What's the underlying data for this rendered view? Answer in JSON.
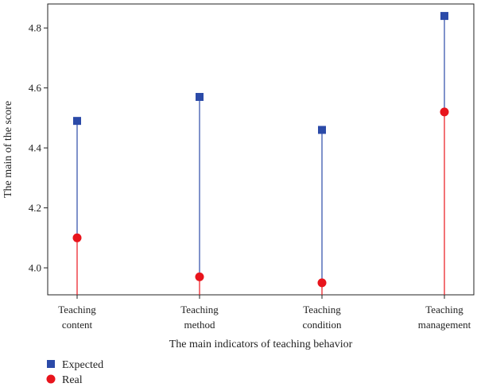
{
  "chart_data": {
    "type": "lollipop",
    "categories": [
      [
        "Teaching",
        "content"
      ],
      [
        "Teaching",
        "method"
      ],
      [
        "Teaching",
        "condition"
      ],
      [
        "Teaching",
        "management"
      ]
    ],
    "series": [
      {
        "name": "Expected",
        "marker": "square",
        "color": "#2b4aa8",
        "values": [
          4.49,
          4.57,
          4.46,
          4.84
        ]
      },
      {
        "name": "Real",
        "marker": "circle",
        "color": "#e8141c",
        "values": [
          4.1,
          3.97,
          3.95,
          4.52
        ]
      }
    ],
    "xlabel": "The main indicators of teaching behavior",
    "ylabel": "The main of the score",
    "ylim": [
      3.91,
      4.88
    ],
    "yticks": [
      4.0,
      4.2,
      4.4,
      4.6,
      4.8
    ],
    "ytick_labels": [
      "4.0",
      "4.2",
      "4.4",
      "4.6",
      "4.8"
    ],
    "grid": false,
    "legend_position": "bottom-left"
  }
}
